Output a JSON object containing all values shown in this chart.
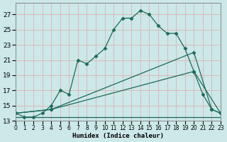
{
  "xlabel": "Humidex (Indice chaleur)",
  "bg_color": "#cce8e8",
  "grid_color": "#dbbaba",
  "line_color": "#1a6b5a",
  "xlim": [
    0,
    23
  ],
  "ylim": [
    13,
    28.5
  ],
  "yticks": [
    13,
    15,
    17,
    19,
    21,
    23,
    25,
    27
  ],
  "xticks": [
    0,
    1,
    2,
    3,
    4,
    5,
    6,
    7,
    8,
    9,
    10,
    11,
    12,
    13,
    14,
    15,
    16,
    17,
    18,
    19,
    20,
    21,
    22,
    23
  ],
  "line1_x": [
    0,
    1,
    2,
    3,
    4,
    5,
    6,
    7,
    8,
    9,
    10,
    11,
    12,
    13,
    14,
    15,
    16,
    17,
    18,
    19,
    20,
    21,
    22,
    23
  ],
  "line1_y": [
    14.0,
    13.5,
    13.5,
    14.0,
    15.0,
    17.0,
    16.5,
    21.0,
    20.5,
    21.5,
    22.5,
    25.0,
    26.5,
    26.5,
    27.5,
    27.0,
    25.5,
    24.5,
    24.5,
    22.5,
    19.5,
    16.5,
    14.5,
    14.0
  ],
  "line2_x": [
    0,
    4,
    20,
    22,
    23
  ],
  "line2_y": [
    14.0,
    14.5,
    22.0,
    14.5,
    14.0
  ],
  "line3_x": [
    0,
    4,
    20,
    23
  ],
  "line3_y": [
    14.0,
    14.5,
    19.5,
    14.0
  ],
  "line4_x": [
    0,
    14,
    23
  ],
  "line4_y": [
    13.5,
    13.5,
    13.5
  ]
}
